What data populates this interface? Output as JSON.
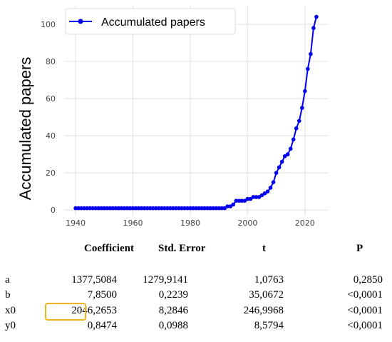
{
  "chart_data": {
    "type": "line",
    "xlabel": "",
    "ylabel": "Accumulated papers",
    "xlim": [
      1936,
      2028
    ],
    "ylim": [
      -3,
      110
    ],
    "xticks": [
      1940,
      1960,
      1980,
      2000,
      2020
    ],
    "yticks": [
      0,
      20,
      40,
      60,
      80,
      100
    ],
    "grid": true,
    "legend_position": "top-left",
    "series": [
      {
        "name": "Accumulated papers",
        "color": "#0000ee",
        "x": [
          1940,
          1941,
          1942,
          1943,
          1944,
          1945,
          1946,
          1947,
          1948,
          1949,
          1950,
          1951,
          1952,
          1953,
          1954,
          1955,
          1956,
          1957,
          1958,
          1959,
          1960,
          1961,
          1962,
          1963,
          1964,
          1965,
          1966,
          1967,
          1968,
          1969,
          1970,
          1971,
          1972,
          1973,
          1974,
          1975,
          1976,
          1977,
          1978,
          1979,
          1980,
          1981,
          1982,
          1983,
          1984,
          1985,
          1986,
          1987,
          1988,
          1989,
          1990,
          1991,
          1992,
          1993,
          1994,
          1995,
          1996,
          1997,
          1998,
          1999,
          2000,
          2001,
          2002,
          2003,
          2004,
          2005,
          2006,
          2007,
          2008,
          2009,
          2010,
          2011,
          2012,
          2013,
          2014,
          2015,
          2016,
          2017,
          2018,
          2019,
          2020,
          2021,
          2022,
          2023,
          2024
        ],
        "values": [
          1,
          1,
          1,
          1,
          1,
          1,
          1,
          1,
          1,
          1,
          1,
          1,
          1,
          1,
          1,
          1,
          1,
          1,
          1,
          1,
          1,
          1,
          1,
          1,
          1,
          1,
          1,
          1,
          1,
          1,
          1,
          1,
          1,
          1,
          1,
          1,
          1,
          1,
          1,
          1,
          1,
          1,
          1,
          1,
          1,
          1,
          1,
          1,
          1,
          1,
          1,
          1,
          1,
          2,
          2,
          3,
          5,
          5,
          5,
          5,
          6,
          6,
          7,
          7,
          7,
          8,
          9,
          10,
          12,
          15,
          20,
          23,
          26,
          29,
          30,
          33,
          38,
          44,
          48,
          55,
          64,
          76,
          84,
          98,
          104
        ]
      }
    ]
  },
  "stats_table": {
    "headers": [
      "Coefficient",
      "Std. Error",
      "t",
      "P"
    ],
    "rows": [
      {
        "label": "a",
        "coef": "1377,5084",
        "se": "1279,9141",
        "t": "1,0763",
        "p": "0,2850"
      },
      {
        "label": "b",
        "coef": "7,8500",
        "se": "0,2239",
        "t": "35,0672",
        "p": "<0,0001"
      },
      {
        "label": "x0",
        "coef": "2046,2653",
        "se": "8,2846",
        "t": "246,9968",
        "p": "<0,0001"
      },
      {
        "label": "y0",
        "coef": "0,8474",
        "se": "0,0988",
        "t": "8,5794",
        "p": "<0,0001"
      }
    ],
    "highlight_color": "#f2b21b"
  }
}
